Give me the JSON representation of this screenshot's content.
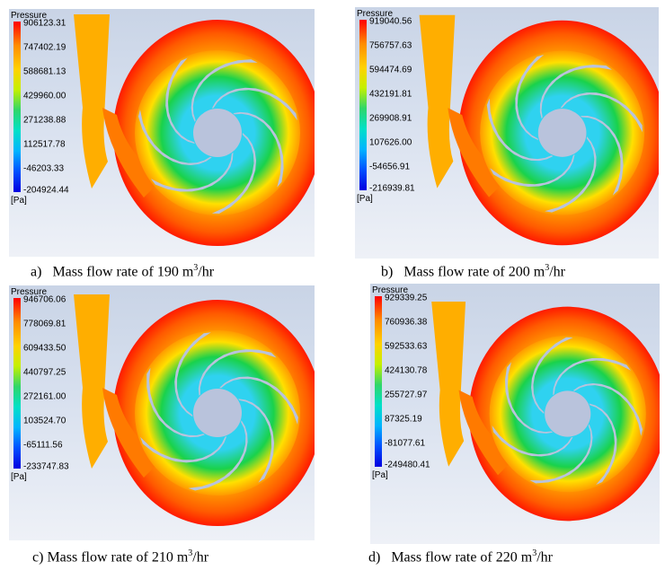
{
  "panels": [
    {
      "id": "a",
      "legend": {
        "title": "Pressure",
        "unit": "[Pa]",
        "ticks": [
          "906123.31",
          "747402.19",
          "588681.13",
          "429960.00",
          "271238.88",
          "112517.78",
          "-46203.33",
          "-204924.44"
        ]
      },
      "caption": {
        "label": "a)",
        "text": "Mass flow rate of 190 m",
        "sup": "3",
        "tail": "/hr"
      }
    },
    {
      "id": "b",
      "legend": {
        "title": "Pressure",
        "unit": "[Pa]",
        "ticks": [
          "919040.56",
          "756757.63",
          "594474.69",
          "432191.81",
          "269908.91",
          "107626.00",
          "-54656.91",
          "-216939.81"
        ]
      },
      "caption": {
        "label": "b)",
        "text": "Mass flow rate of 200 m",
        "sup": "3",
        "tail": "/hr"
      }
    },
    {
      "id": "c",
      "legend": {
        "title": "Pressure",
        "unit": "[Pa]",
        "ticks": [
          "946706.06",
          "778069.81",
          "609433.50",
          "440797.25",
          "272161.00",
          "103524.70",
          "-65111.56",
          "-233747.83"
        ]
      },
      "caption": {
        "label": "c)",
        "text": "Mass flow rate of 210 m",
        "sup": "3",
        "tail": "/hr"
      }
    },
    {
      "id": "d",
      "legend": {
        "title": "Pressure",
        "unit": "[Pa]",
        "ticks": [
          "929339.25",
          "760936.38",
          "592533.63",
          "424130.78",
          "255727.97",
          "87325.19",
          "-81077.61",
          "-249480.41"
        ]
      },
      "caption": {
        "label": "d)",
        "text": "Mass flow rate of 220 m",
        "sup": "3",
        "tail": "/hr"
      }
    }
  ],
  "colors": {
    "volute_outer": "#ff1a00",
    "volute_inner": "#ff9a00",
    "impeller_mid": "#19d24b",
    "impeller_core": "#2fd2f0",
    "blade": "#b9c3dc"
  }
}
